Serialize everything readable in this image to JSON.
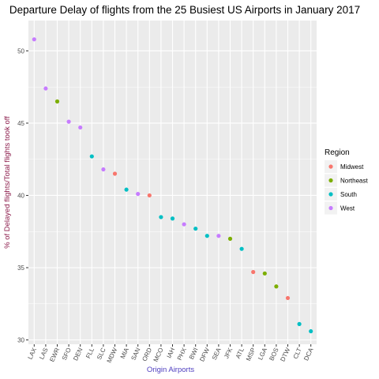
{
  "chart_data": {
    "type": "scatter",
    "title": "Departure Delay of flights from the 25 Busiest US Airports in January 2017",
    "xlabel": "Origin Airports",
    "ylabel": "% of Delayed flights/Total flights took off",
    "ylim": [
      29.7,
      52.1
    ],
    "yticks": [
      30,
      35,
      40,
      45,
      50
    ],
    "grid": true,
    "legend": {
      "title": "Region",
      "placement": "right",
      "entries": [
        {
          "name": "Midwest",
          "color": "#F8766D"
        },
        {
          "name": "Northeast",
          "color": "#7CAE00"
        },
        {
          "name": "South",
          "color": "#00BFC4"
        },
        {
          "name": "West",
          "color": "#C77CFF"
        }
      ]
    },
    "categories": [
      "LAX",
      "LAS",
      "EWR",
      "SFO",
      "DEN",
      "FLL",
      "SLC",
      "MDW",
      "MIA",
      "SAN",
      "ORD",
      "MCO",
      "IAH",
      "PHX",
      "BWI",
      "DFW",
      "SEA",
      "JFK",
      "ATL",
      "MSP",
      "LGA",
      "BOS",
      "DTW",
      "CLT",
      "DCA"
    ],
    "points": [
      {
        "x": "LAX",
        "y": 50.8,
        "region": "West"
      },
      {
        "x": "LAS",
        "y": 47.4,
        "region": "West"
      },
      {
        "x": "EWR",
        "y": 46.5,
        "region": "Northeast"
      },
      {
        "x": "SFO",
        "y": 45.1,
        "region": "West"
      },
      {
        "x": "DEN",
        "y": 44.7,
        "region": "West"
      },
      {
        "x": "FLL",
        "y": 42.7,
        "region": "South"
      },
      {
        "x": "SLC",
        "y": 41.8,
        "region": "West"
      },
      {
        "x": "MDW",
        "y": 41.5,
        "region": "Midwest"
      },
      {
        "x": "MIA",
        "y": 40.4,
        "region": "South"
      },
      {
        "x": "SAN",
        "y": 40.1,
        "region": "West"
      },
      {
        "x": "ORD",
        "y": 40.0,
        "region": "Midwest"
      },
      {
        "x": "MCO",
        "y": 38.5,
        "region": "South"
      },
      {
        "x": "IAH",
        "y": 38.4,
        "region": "South"
      },
      {
        "x": "PHX",
        "y": 38.0,
        "region": "West"
      },
      {
        "x": "BWI",
        "y": 37.7,
        "region": "South"
      },
      {
        "x": "DFW",
        "y": 37.2,
        "region": "South"
      },
      {
        "x": "SEA",
        "y": 37.2,
        "region": "West"
      },
      {
        "x": "JFK",
        "y": 37.0,
        "region": "Northeast"
      },
      {
        "x": "ATL",
        "y": 36.3,
        "region": "South"
      },
      {
        "x": "MSP",
        "y": 34.7,
        "region": "Midwest"
      },
      {
        "x": "LGA",
        "y": 34.6,
        "region": "Northeast"
      },
      {
        "x": "BOS",
        "y": 33.7,
        "region": "Northeast"
      },
      {
        "x": "DTW",
        "y": 32.9,
        "region": "Midwest"
      },
      {
        "x": "CLT",
        "y": 31.1,
        "region": "South"
      },
      {
        "x": "DCA",
        "y": 30.6,
        "region": "South"
      }
    ],
    "colors": {
      "panel_background": "#EBEBEB",
      "grid_line": "#FFFFFF",
      "ylabel_color": "#8B1A4A",
      "xlabel_color": "#5040C0"
    }
  }
}
